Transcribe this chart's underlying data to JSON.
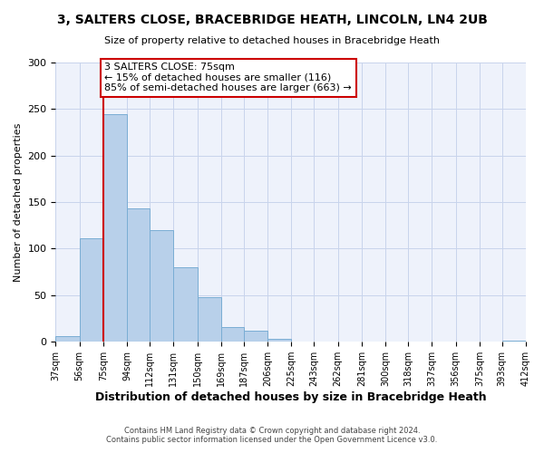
{
  "title": "3, SALTERS CLOSE, BRACEBRIDGE HEATH, LINCOLN, LN4 2UB",
  "subtitle": "Size of property relative to detached houses in Bracebridge Heath",
  "xlabel": "Distribution of detached houses by size in Bracebridge Heath",
  "ylabel": "Number of detached properties",
  "bin_edges": [
    37,
    56,
    75,
    94,
    112,
    131,
    150,
    169,
    187,
    206,
    225,
    243,
    262,
    281,
    300,
    318,
    337,
    356,
    375,
    393,
    412
  ],
  "bin_heights": [
    6,
    111,
    245,
    143,
    120,
    80,
    48,
    16,
    12,
    3,
    0,
    0,
    0,
    0,
    0,
    0,
    0,
    0,
    0,
    1
  ],
  "bar_color": "#b8d0ea",
  "bar_edge_color": "#7aadd4",
  "subject_value": 75,
  "red_line_color": "#cc0000",
  "annotation_text": "3 SALTERS CLOSE: 75sqm\n← 15% of detached houses are smaller (116)\n85% of semi-detached houses are larger (663) →",
  "annotation_box_color": "#ffffff",
  "annotation_box_edge_color": "#cc0000",
  "ylim": [
    0,
    300
  ],
  "yticks": [
    0,
    50,
    100,
    150,
    200,
    250,
    300
  ],
  "tick_labels": [
    "37sqm",
    "56sqm",
    "75sqm",
    "94sqm",
    "112sqm",
    "131sqm",
    "150sqm",
    "169sqm",
    "187sqm",
    "206sqm",
    "225sqm",
    "243sqm",
    "262sqm",
    "281sqm",
    "300sqm",
    "318sqm",
    "337sqm",
    "356sqm",
    "375sqm",
    "393sqm",
    "412sqm"
  ],
  "footer1": "Contains HM Land Registry data © Crown copyright and database right 2024.",
  "footer2": "Contains public sector information licensed under the Open Government Licence v3.0.",
  "bg_color": "#ffffff",
  "plot_bg_color": "#eef2fb",
  "grid_color": "#c8d4ec"
}
